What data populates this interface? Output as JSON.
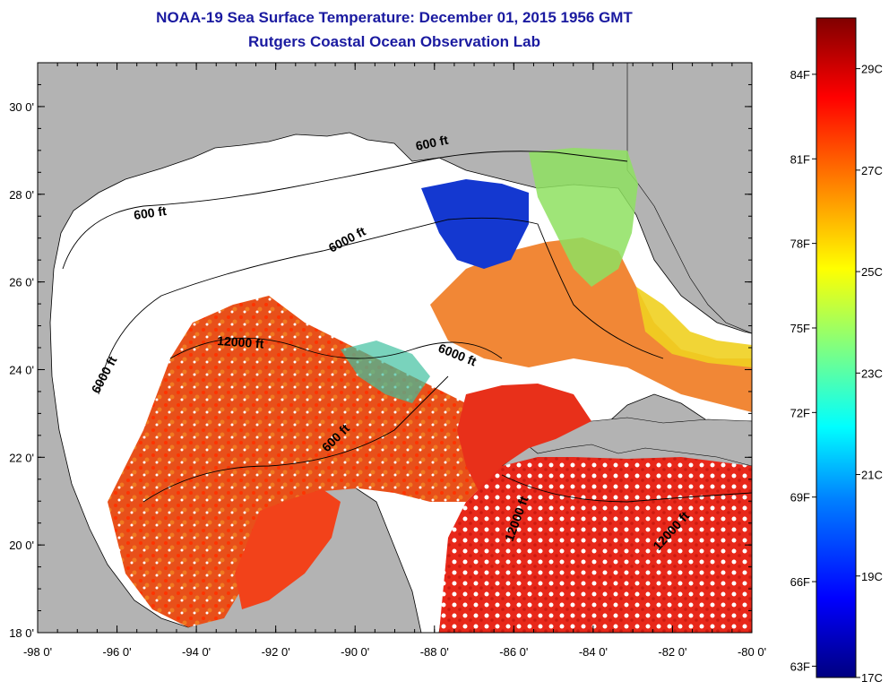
{
  "title": "NOAA-19 Sea Surface Temperature:  December 01, 2015 1956 GMT",
  "subtitle": "Rutgers Coastal Ocean Observation Lab",
  "colors": {
    "land": "#b3b3b3",
    "cloud": "#ffffff",
    "map_border": "#000000",
    "title_text": "#1a1aa0"
  },
  "map": {
    "lon_range": [
      -98,
      -80
    ],
    "lat_range": [
      18,
      31
    ],
    "x_ticks": [
      "-98 0'",
      "-96 0'",
      "-94 0'",
      "-92 0'",
      "-90 0'",
      "-88 0'",
      "-86 0'",
      "-84 0'",
      "-82 0'",
      "-80 0'"
    ],
    "y_ticks": [
      "18 0'",
      "20 0'",
      "22 0'",
      "24 0'",
      "26 0'",
      "28 0'",
      "30 0'"
    ],
    "contour_labels": [
      "600 ft",
      "600 ft",
      "6000 ft",
      "12000 ft",
      "6000 ft",
      "6000 ft",
      "600 ft",
      "12000 ft",
      "12000 ft"
    ]
  },
  "colorbar": {
    "range_c": [
      17,
      30
    ],
    "fahrenheit_labels": [
      "84F",
      "81F",
      "78F",
      "75F",
      "72F",
      "69F",
      "66F",
      "63F"
    ],
    "celsius_labels": [
      "29C",
      "27C",
      "25C",
      "23C",
      "21C",
      "19C",
      "17C"
    ],
    "stops": [
      "#000080",
      "#0000ff",
      "#0080ff",
      "#00ffff",
      "#80ff80",
      "#ffff00",
      "#ff8000",
      "#ff0000",
      "#800000"
    ]
  }
}
